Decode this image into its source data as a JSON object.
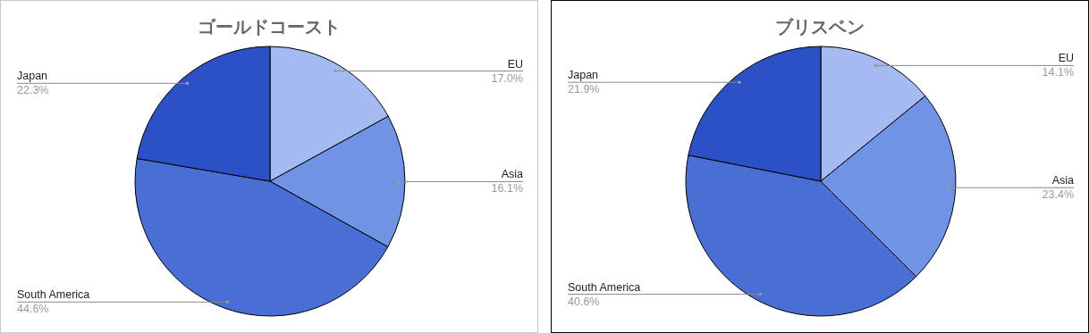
{
  "chart_data": [
    {
      "type": "pie",
      "title": "ゴールドコースト",
      "categories": [
        "EU",
        "Asia",
        "South America",
        "Japan"
      ],
      "values": [
        17.0,
        16.1,
        44.6,
        22.3
      ],
      "value_labels": [
        "17.0%",
        "16.1%",
        "44.6%",
        "22.3%"
      ],
      "colors": [
        "#a4baf0",
        "#7093e6",
        "#4a6fd4",
        "#2c50c6"
      ],
      "legend": false
    },
    {
      "type": "pie",
      "title": "ブリスベン",
      "categories": [
        "EU",
        "Asia",
        "South America",
        "Japan"
      ],
      "values": [
        14.1,
        23.4,
        40.6,
        21.9
      ],
      "value_labels": [
        "14.1%",
        "23.4%",
        "40.6%",
        "21.9%"
      ],
      "colors": [
        "#a4baf0",
        "#7093e6",
        "#4a6fd4",
        "#2c50c6"
      ],
      "legend": false
    }
  ]
}
